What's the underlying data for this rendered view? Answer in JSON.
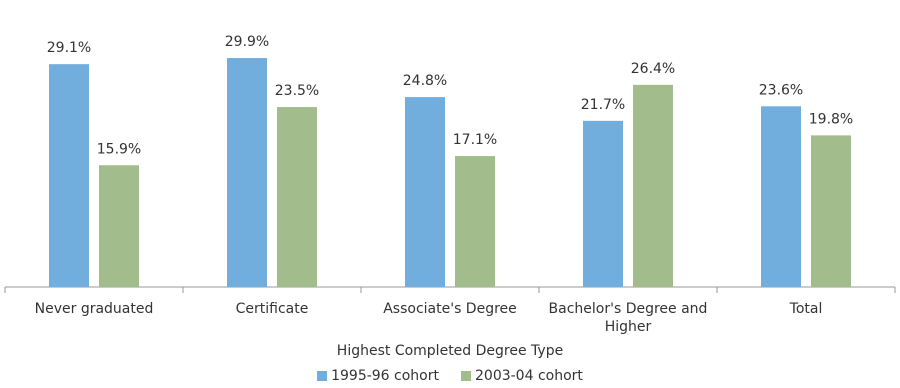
{
  "chart_data": {
    "type": "bar",
    "x_label": "Highest Completed Degree Type",
    "categories": [
      "Never graduated",
      "Certificate",
      "Associate's Degree",
      "Bachelor's Degree and Higher",
      "Total"
    ],
    "series": [
      {
        "name": "1995-96 cohort",
        "color": "#71aedd",
        "values": [
          29.1,
          29.9,
          24.8,
          21.7,
          23.6
        ],
        "value_labels": [
          "29.1%",
          "29.9%",
          "24.8%",
          "21.7%",
          "23.6%"
        ]
      },
      {
        "name": "2003-04 cohort",
        "color": "#a3bc8b",
        "values": [
          15.9,
          23.5,
          17.1,
          26.4,
          19.8
        ],
        "value_labels": [
          "15.9%",
          "23.5%",
          "17.1%",
          "26.4%",
          "19.8%"
        ]
      }
    ],
    "ylim": [
      0,
      35
    ],
    "legend": "bottom"
  }
}
